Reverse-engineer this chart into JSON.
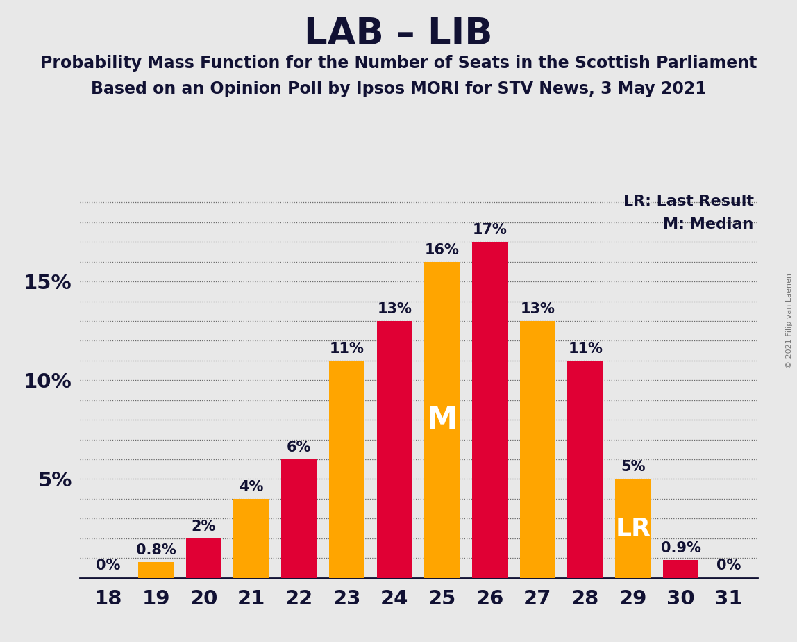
{
  "title": "LAB – LIB",
  "subtitle1": "Probability Mass Function for the Number of Seats in the Scottish Parliament",
  "subtitle2": "Based on an Opinion Poll by Ipsos MORI for STV News, 3 May 2021",
  "copyright": "© 2021 Filip van Laenen",
  "legend_lr": "LR: Last Result",
  "legend_m": "M: Median",
  "seats": [
    18,
    19,
    20,
    21,
    22,
    23,
    24,
    25,
    26,
    27,
    28,
    29,
    30,
    31
  ],
  "values": [
    0.0,
    0.8,
    2.0,
    4.0,
    6.0,
    11.0,
    13.0,
    16.0,
    17.0,
    13.0,
    11.0,
    5.0,
    0.9,
    0.0
  ],
  "labels": [
    "0%",
    "0.8%",
    "2%",
    "4%",
    "6%",
    "11%",
    "13%",
    "16%",
    "17%",
    "13%",
    "11%",
    "5%",
    "0.9%",
    "0%"
  ],
  "colors": [
    "#E00034",
    "#FFA500",
    "#E00034",
    "#FFA500",
    "#E00034",
    "#FFA500",
    "#E00034",
    "#FFA500",
    "#E00034",
    "#FFA500",
    "#E00034",
    "#FFA500",
    "#E00034",
    "#FFA500"
  ],
  "median_seat": 25,
  "lr_seat": 29,
  "background_color": "#E8E8E8",
  "ylim": [
    0,
    19.5
  ],
  "yticks": [
    5,
    10,
    15
  ],
  "ytick_labels": [
    "5%",
    "10%",
    "15%"
  ],
  "bar_width": 0.75,
  "title_fontsize": 38,
  "subtitle_fontsize": 17,
  "label_fontsize": 15,
  "tick_fontsize": 21,
  "m_fontsize": 32,
  "lr_fontsize": 26,
  "legend_fontsize": 16
}
